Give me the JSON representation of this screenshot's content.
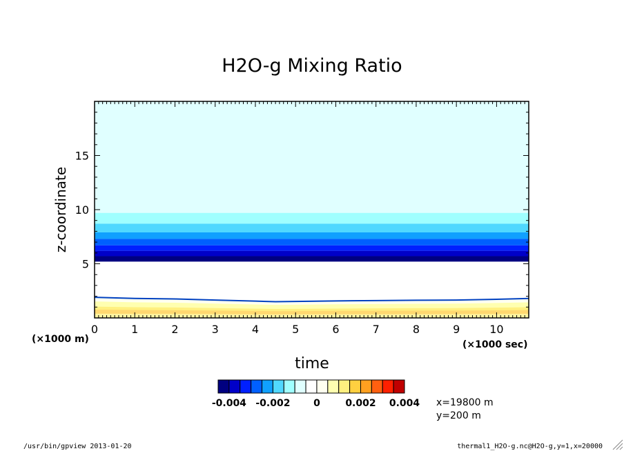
{
  "chart_data": {
    "type": "heatmap",
    "title": "H2O-g Mixing Ratio",
    "xlabel": "time",
    "ylabel": "z-coordinate",
    "x_unit": "(×1000 sec)",
    "y_unit": "(×1000 m)",
    "xlim": [
      0,
      10.8
    ],
    "ylim": [
      0,
      20
    ],
    "x_ticks": [
      "0",
      "1",
      "2",
      "3",
      "4",
      "5",
      "6",
      "7",
      "8",
      "9",
      "10"
    ],
    "y_ticks": [
      "5",
      "10",
      "15"
    ],
    "levels": [
      -0.0045,
      -0.004,
      -0.0035,
      -0.003,
      -0.0025,
      -0.002,
      -0.0015,
      -0.001,
      -0.0005,
      0,
      0.0005,
      0.001,
      0.0015,
      0.002,
      0.0025,
      0.003,
      0.0035,
      0.004,
      0.0045
    ],
    "colors": [
      "#000080",
      "#0000c8",
      "#0020ff",
      "#0060ff",
      "#10a0ff",
      "#50d8ff",
      "#a0ffff",
      "#e0ffff",
      "#ffffff",
      "#fffff0",
      "#ffffb0",
      "#fff080",
      "#ffd040",
      "#ffa020",
      "#ff6010",
      "#ff2000",
      "#c00000"
    ],
    "colorbar_labels": [
      "-0.004",
      "-0.002",
      "0",
      "0.002",
      "0.004"
    ],
    "bands": [
      {
        "z0": 9.7,
        "z1": 20,
        "color": "#e0ffff"
      },
      {
        "z0": 8.7,
        "z1": 9.7,
        "color": "#a0ffff"
      },
      {
        "z0": 7.9,
        "z1": 8.7,
        "color": "#50d8ff"
      },
      {
        "z0": 7.3,
        "z1": 7.9,
        "color": "#10a0ff"
      },
      {
        "z0": 6.7,
        "z1": 7.3,
        "color": "#0060ff"
      },
      {
        "z0": 6.2,
        "z1": 6.7,
        "color": "#0020ff"
      },
      {
        "z0": 5.7,
        "z1": 6.2,
        "color": "#0000c8"
      },
      {
        "z0": 5.2,
        "z1": 5.7,
        "color": "#000080"
      }
    ],
    "boundary_layer": {
      "times": [
        0,
        1,
        2,
        3,
        4,
        4.5,
        5,
        6,
        7,
        8,
        9,
        10,
        10.8
      ],
      "top": [
        1.9,
        1.8,
        1.75,
        1.65,
        1.55,
        1.5,
        1.52,
        1.57,
        1.6,
        1.63,
        1.65,
        1.72,
        1.8
      ]
    }
  },
  "info": {
    "x_slice": "x=19800 m",
    "y_slice": "y=200 m"
  },
  "footer": {
    "left": "/usr/bin/gpview  2013-01-20",
    "right": "thermal1_H2O-g.nc@H2O-g,y=1,x=20000"
  }
}
